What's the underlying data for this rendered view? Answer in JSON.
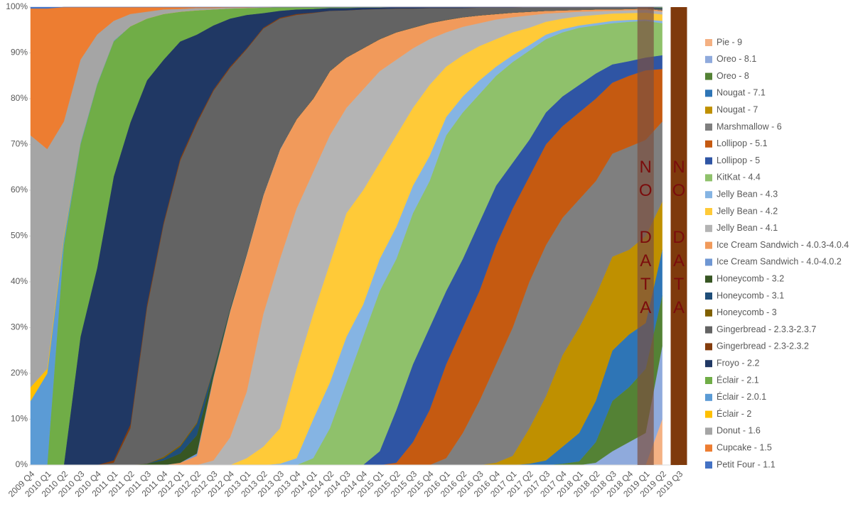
{
  "chart_data": {
    "type": "area",
    "stacked": true,
    "categories": [
      "2009 Q4",
      "2010 Q1",
      "2010 Q2",
      "2010 Q3",
      "2010 Q4",
      "2011 Q1",
      "2011 Q2",
      "2011 Q3",
      "2011 Q4",
      "2012 Q1",
      "2012 Q2",
      "2012 Q3",
      "2012 Q4",
      "2013 Q1",
      "2013 Q2",
      "2013 Q3",
      "2013 Q4",
      "2014 Q1",
      "2014 Q2",
      "2014 Q3",
      "2014 Q4",
      "2015 Q1",
      "2015 Q2",
      "2015 Q3",
      "2015 Q4",
      "2016 Q1",
      "2016 Q2",
      "2016 Q3",
      "2016 Q4",
      "2017 Q1",
      "2017 Q2",
      "2017 Q3",
      "2017 Q4",
      "2018 Q1",
      "2018 Q2",
      "2018 Q3",
      "2018 Q4",
      "2019 Q1",
      "2019 Q2",
      "2019 Q3"
    ],
    "ylim": [
      0,
      100
    ],
    "yticks": [
      {
        "value": 0,
        "label": "0%"
      },
      {
        "value": 10,
        "label": "10%"
      },
      {
        "value": 20,
        "label": "20%"
      },
      {
        "value": 30,
        "label": "30%"
      },
      {
        "value": 40,
        "label": "40%"
      },
      {
        "value": 50,
        "label": "50%"
      },
      {
        "value": 60,
        "label": "60%"
      },
      {
        "value": 70,
        "label": "70%"
      },
      {
        "value": 80,
        "label": "80%"
      },
      {
        "value": 90,
        "label": "90%"
      },
      {
        "value": 100,
        "label": "100%"
      }
    ],
    "legend": "right",
    "series": [
      {
        "name": "Pie - 9",
        "color": "#f4b183",
        "values": [
          0,
          0,
          0,
          0,
          0,
          0,
          0,
          0,
          0,
          0,
          0,
          0,
          0,
          0,
          0,
          0,
          0,
          0,
          0,
          0,
          0,
          0,
          0,
          0,
          0,
          0,
          0,
          0,
          0,
          0,
          0,
          0,
          0,
          0,
          0,
          0,
          0,
          0,
          10,
          null
        ]
      },
      {
        "name": "Oreo - 8.1",
        "color": "#8faadc",
        "values": [
          0,
          0,
          0,
          0,
          0,
          0,
          0,
          0,
          0,
          0,
          0,
          0,
          0,
          0,
          0,
          0,
          0,
          0,
          0,
          0,
          0,
          0,
          0,
          0,
          0,
          0,
          0,
          0,
          0,
          0,
          0,
          0,
          0,
          0,
          0.5,
          3,
          5,
          7,
          16,
          null
        ]
      },
      {
        "name": "Oreo - 8",
        "color": "#548235",
        "values": [
          0,
          0,
          0,
          0,
          0,
          0,
          0,
          0,
          0,
          0,
          0,
          0,
          0,
          0,
          0,
          0,
          0,
          0,
          0,
          0,
          0,
          0,
          0,
          0,
          0,
          0,
          0,
          0,
          0,
          0,
          0,
          0,
          0.3,
          0.8,
          4.5,
          11,
          12,
          14,
          11,
          null
        ]
      },
      {
        "name": "Nougat - 7.1",
        "color": "#2e75b6",
        "values": [
          0,
          0,
          0,
          0,
          0,
          0,
          0,
          0,
          0,
          0,
          0,
          0,
          0,
          0,
          0,
          0,
          0,
          0,
          0,
          0,
          0,
          0,
          0,
          0,
          0,
          0,
          0,
          0,
          0,
          0,
          0.3,
          1,
          3.7,
          6.2,
          9,
          11,
          11.5,
          10,
          10,
          null
        ]
      },
      {
        "name": "Nougat - 7",
        "color": "#bf9000",
        "values": [
          0,
          0,
          0,
          0,
          0,
          0,
          0,
          0,
          0,
          0,
          0,
          0,
          0,
          0,
          0,
          0,
          0,
          0,
          0,
          0,
          0,
          0,
          0,
          0,
          0,
          0,
          0,
          0,
          0.5,
          2,
          7.7,
          14,
          20,
          23,
          23,
          20.5,
          18.5,
          19,
          10.5,
          null
        ]
      },
      {
        "name": "Marshmallow - 6",
        "color": "#7f7f7f",
        "values": [
          0,
          0,
          0,
          0,
          0,
          0,
          0,
          0,
          0,
          0,
          0,
          0,
          0,
          0,
          0,
          0,
          0,
          0,
          0,
          0,
          0,
          0,
          0,
          0,
          0,
          1.5,
          7,
          14,
          21.5,
          28,
          32,
          33,
          30,
          28,
          25,
          22.5,
          22.5,
          21,
          17.5,
          null
        ]
      },
      {
        "name": "Lollipop - 5.1",
        "color": "#c55a11",
        "values": [
          0,
          0,
          0,
          0,
          0,
          0,
          0,
          0,
          0,
          0,
          0,
          0,
          0,
          0,
          0,
          0,
          0,
          0,
          0,
          0,
          0,
          0,
          0.5,
          5,
          12,
          20.5,
          23,
          24,
          26,
          26,
          23,
          22,
          20,
          19,
          18,
          15.5,
          15.5,
          15.2,
          11.5,
          null
        ]
      },
      {
        "name": "Lollipop - 5",
        "color": "#2f55a4",
        "values": [
          0,
          0,
          0,
          0,
          0,
          0,
          0,
          0,
          0,
          0,
          0,
          0,
          0,
          0,
          0,
          0,
          0,
          0,
          0,
          0,
          0,
          3,
          11.5,
          17,
          18,
          16,
          15,
          15,
          13,
          10,
          8,
          7,
          6.5,
          6,
          5.5,
          4,
          3.2,
          2.8,
          3,
          null
        ]
      },
      {
        "name": "KitKat - 4.4",
        "color": "#8fc16b",
        "values": [
          0,
          0,
          0,
          0,
          0,
          0,
          0,
          0,
          0,
          0,
          0,
          0,
          0,
          0,
          0,
          0,
          0,
          1.5,
          8,
          18,
          28,
          35,
          33,
          33,
          32,
          34,
          32,
          28,
          24,
          22,
          19.5,
          16,
          14,
          12.5,
          10.5,
          9,
          8.6,
          8,
          7,
          null
        ]
      },
      {
        "name": "Jelly Bean - 4.3",
        "color": "#85b4e3",
        "values": [
          0,
          0,
          0,
          0,
          0,
          0,
          0,
          0,
          0,
          0,
          0,
          0,
          0,
          0,
          0,
          0.3,
          1.5,
          8.5,
          10,
          10,
          7,
          7,
          7,
          6,
          5.5,
          4,
          3.5,
          3,
          2,
          1.5,
          1.2,
          1,
          0.7,
          0.5,
          0.5,
          0.5,
          0.4,
          0.3,
          0.5,
          null
        ]
      },
      {
        "name": "Jelly Bean - 4.2",
        "color": "#ffca38",
        "values": [
          0,
          0,
          0,
          0,
          0,
          0,
          0,
          0,
          0,
          0,
          0,
          0,
          0,
          1.5,
          4,
          7.7,
          19.5,
          23,
          26,
          27,
          25,
          21,
          20,
          17,
          15.5,
          11,
          9,
          7.5,
          6,
          5,
          3.8,
          2.8,
          2.3,
          2,
          1.8,
          1.6,
          1.5,
          1.5,
          1.4,
          null
        ]
      },
      {
        "name": "Jelly Bean - 4.1",
        "color": "#b4b4b4",
        "values": [
          0,
          0,
          0,
          0,
          0,
          0,
          0,
          0,
          0,
          0,
          0,
          1,
          6,
          14.5,
          29,
          37,
          35,
          31,
          28,
          23,
          22,
          20,
          16.5,
          13,
          10,
          7.5,
          6.2,
          5,
          4.3,
          3.3,
          2.7,
          1.8,
          1.3,
          1,
          0.8,
          0.6,
          0.6,
          0.6,
          0.6,
          null
        ]
      },
      {
        "name": "Ice Cream Sandwich - 4.0.3-4.0.4",
        "color": "#f19a5b",
        "values": [
          0,
          0,
          0,
          0,
          0,
          0,
          0,
          0,
          0,
          0.5,
          2,
          18,
          27.5,
          29.8,
          25.8,
          23.8,
          19.5,
          16,
          14,
          11,
          9,
          7,
          6,
          4.5,
          3.5,
          2.7,
          2.1,
          1.7,
          1.2,
          1,
          0.8,
          0.6,
          0.5,
          0.4,
          0.4,
          0.3,
          0.3,
          0.3,
          0.3,
          null
        ]
      },
      {
        "name": "Ice Cream Sandwich - 4.0-4.0.2",
        "color": "#6f97d3",
        "values": [
          0,
          0,
          0,
          0,
          0,
          0,
          0,
          0,
          0,
          0,
          0.5,
          0.3,
          0.2,
          0.2,
          0.2,
          0.2,
          0,
          0,
          0,
          0,
          0,
          0,
          0,
          0,
          0,
          0,
          0,
          0,
          0,
          0,
          0,
          0,
          0,
          0,
          0,
          0,
          0,
          0,
          0,
          null
        ]
      },
      {
        "name": "Honeycomb - 3.2",
        "color": "#375623",
        "values": [
          0,
          0,
          0,
          0,
          0,
          0,
          0,
          0.3,
          1,
          2,
          4,
          1,
          0.3,
          0.1,
          0,
          0,
          0,
          0,
          0,
          0,
          0,
          0,
          0,
          0,
          0,
          0,
          0,
          0,
          0,
          0,
          0,
          0,
          0,
          0,
          0,
          0,
          0,
          0,
          0,
          null
        ]
      },
      {
        "name": "Honeycomb - 3.1",
        "color": "#1f4e79",
        "values": [
          0,
          0,
          0,
          0,
          0,
          0,
          0,
          0,
          0.5,
          1.5,
          2.5,
          0.5,
          0.2,
          0.1,
          0,
          0,
          0,
          0,
          0,
          0,
          0,
          0,
          0,
          0,
          0,
          0,
          0,
          0,
          0,
          0,
          0,
          0,
          0,
          0,
          0,
          0,
          0,
          0,
          0,
          null
        ]
      },
      {
        "name": "Honeycomb - 3",
        "color": "#806000",
        "values": [
          0,
          0,
          0,
          0,
          0,
          0,
          0,
          0,
          0.3,
          0.3,
          0.3,
          0.2,
          0,
          0,
          0,
          0,
          0,
          0,
          0,
          0,
          0,
          0,
          0,
          0,
          0,
          0,
          0,
          0,
          0,
          0,
          0,
          0,
          0,
          0,
          0,
          0,
          0,
          0,
          0,
          null
        ]
      },
      {
        "name": "Gingerbread - 2.3.3-2.3.7",
        "color": "#636363",
        "values": [
          0,
          0,
          0,
          0,
          0,
          0.5,
          8,
          34,
          50.7,
          62.2,
          65.3,
          60.7,
          52.5,
          44.6,
          36.3,
          28.5,
          22.8,
          18.7,
          13.2,
          10.3,
          8.5,
          6.6,
          5.2,
          4.2,
          3.3,
          2.6,
          2,
          1.7,
          1.4,
          1.1,
          1,
          0.8,
          0.7,
          0.6,
          0.5,
          0.5,
          0.4,
          0.3,
          0.3,
          null
        ]
      },
      {
        "name": "Gingerbread - 2.3-2.3.2",
        "color": "#843c0c",
        "values": [
          0,
          0,
          0,
          0,
          0,
          0.5,
          0.8,
          0.7,
          0.5,
          0.5,
          0.4,
          0.3,
          0.3,
          0.2,
          0.2,
          0.2,
          0.2,
          0.1,
          0,
          0,
          0,
          0,
          0,
          0,
          0,
          0,
          0,
          0,
          0,
          0,
          0,
          0,
          0,
          0,
          0,
          0,
          0,
          0,
          0,
          null
        ]
      },
      {
        "name": "Froyo - 2.2",
        "color": "#203864",
        "values": [
          0,
          0,
          0,
          28,
          43,
          62,
          66,
          49,
          35.5,
          25.5,
          19,
          14,
          10.5,
          7.3,
          3.2,
          1.5,
          1,
          0.8,
          0.6,
          0.5,
          0.4,
          0.3,
          0.3,
          0.3,
          0.2,
          0.2,
          0.2,
          0.1,
          0.1,
          0.1,
          0,
          0,
          0,
          0,
          0,
          0,
          0,
          0,
          0.2,
          null
        ]
      },
      {
        "name": "Éclair - 2.1",
        "color": "#70ad47",
        "values": [
          0,
          0,
          48,
          42,
          40,
          29.5,
          21,
          13.5,
          10,
          6.5,
          5.3,
          3.5,
          2.2,
          1.5,
          1.2,
          0.8,
          0.5,
          0.4,
          0.2,
          0.2,
          0.1,
          0.1,
          0,
          0,
          0,
          0,
          0,
          0,
          0,
          0,
          0,
          0,
          0,
          0,
          0,
          0,
          0,
          0,
          0.2,
          null
        ]
      },
      {
        "name": "Éclair - 2.0.1",
        "color": "#5b9bd5",
        "values": [
          14,
          20,
          1.5,
          0.5,
          0.3,
          0.2,
          0,
          0,
          0,
          0,
          0,
          0,
          0,
          0,
          0,
          0,
          0,
          0,
          0,
          0,
          0,
          0,
          0,
          0,
          0,
          0,
          0,
          0,
          0,
          0,
          0,
          0,
          0,
          0,
          0,
          0,
          0,
          0,
          0,
          null
        ]
      },
      {
        "name": "Éclair - 2",
        "color": "#ffc000",
        "values": [
          3,
          1,
          0.5,
          0,
          0,
          0,
          0,
          0,
          0,
          0,
          0,
          0,
          0,
          0,
          0,
          0,
          0,
          0,
          0,
          0,
          0,
          0,
          0,
          0,
          0,
          0,
          0,
          0,
          0,
          0,
          0,
          0,
          0,
          0,
          0,
          0,
          0,
          0,
          0,
          null
        ]
      },
      {
        "name": "Donut - 1.6",
        "color": "#a5a5a5",
        "values": [
          55,
          48,
          25,
          18,
          10.7,
          4.3,
          2.7,
          1.5,
          1,
          0.6,
          0.5,
          0.3,
          0.2,
          0.1,
          0.1,
          0,
          0,
          0,
          0,
          0,
          0,
          0,
          0,
          0,
          0,
          0,
          0,
          0,
          0,
          0,
          0,
          0,
          0,
          0,
          0,
          0,
          0,
          0,
          0,
          null
        ]
      },
      {
        "name": "Cupcake - 1.5",
        "color": "#ed7d31",
        "values": [
          27.7,
          30.7,
          25,
          11.5,
          6,
          3,
          1.5,
          1,
          0.5,
          0.4,
          0.2,
          0.2,
          0.1,
          0.1,
          0,
          0,
          0,
          0,
          0,
          0,
          0,
          0,
          0,
          0,
          0,
          0,
          0,
          0,
          0,
          0,
          0,
          0,
          0,
          0,
          0,
          0,
          0,
          0,
          0,
          null
        ]
      },
      {
        "name": "Petit Four - 1.1",
        "color": "#4472c4",
        "values": [
          0.3,
          0.3,
          0,
          0,
          0,
          0,
          0,
          0,
          0,
          0,
          0,
          0,
          0,
          0,
          0,
          0,
          0,
          0,
          0,
          0,
          0,
          0,
          0,
          0,
          0,
          0,
          0,
          0,
          0,
          0,
          0,
          0,
          0,
          0,
          0,
          0,
          0,
          0,
          0,
          null
        ]
      }
    ],
    "annotations": [
      {
        "text": "NO DATA",
        "category": "2019 Q1",
        "color": "#7a5040",
        "opacity": 0.7
      },
      {
        "text": "NO DATA",
        "category": "2019 Q3",
        "color": "#7f3a0c",
        "opacity": 1
      }
    ]
  }
}
